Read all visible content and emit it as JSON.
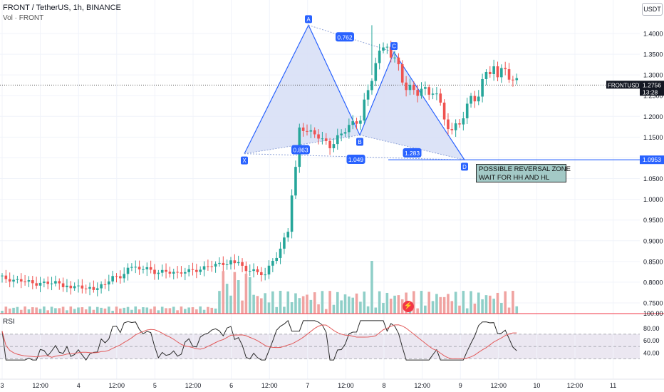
{
  "header": {
    "title": "FRONT / TetherUS, 1h, BINANCE",
    "volume_label": "Vol · FRONT",
    "currency": "USDT"
  },
  "indicator": {
    "label": "RSI"
  },
  "annotation": {
    "line1": "POSSIBLE REVERSAL ZONE",
    "line2": "WAIT FOR HH AND HL"
  },
  "colors": {
    "up": "#26a69a",
    "down": "#ef5350",
    "pattern": "#2962ff",
    "pattern_fill": "#d8e0f6",
    "rsi_line": "#2b2b2b",
    "rsi_ma": "#e25b5b",
    "label_bg": "#2962ff"
  },
  "chart_data": {
    "type": "candlestick",
    "price_axis": {
      "ticks": [
        "1.4000",
        "1.3500",
        "1.3000",
        "1.2500",
        "1.2000",
        "1.1500",
        "1.1000",
        "1.0500",
        "1.0000",
        "0.9500",
        "0.9000",
        "0.8500",
        "0.8000",
        "0.7500"
      ],
      "range": [
        0.735,
        1.455
      ]
    },
    "time_axis": {
      "labels": [
        "3",
        "12:00",
        "4",
        "12:00",
        "5",
        "12:00",
        "6",
        "12:00",
        "7",
        "12:00",
        "8",
        "12:00",
        "9",
        "12:00",
        "10",
        "12:00",
        "11"
      ]
    },
    "current_price": {
      "symbol": "FRONTUSDT",
      "price": "1.2756",
      "countdown": "13:28"
    },
    "level_line": {
      "price": "1.0953"
    },
    "harmonic_pattern": {
      "points": [
        {
          "label": "X",
          "price": 1.11
        },
        {
          "label": "A",
          "price": 1.42
        },
        {
          "label": "B",
          "price": 1.155
        },
        {
          "label": "C",
          "price": 1.355
        },
        {
          "label": "D",
          "price": 1.095
        }
      ],
      "ratios": [
        "0.762",
        "0.863",
        "1.049",
        "1.283"
      ]
    },
    "volume_axis": {
      "labels": [
        "100.00"
      ]
    },
    "rsi": {
      "ticks": [
        "80.00",
        "60.00",
        "40.00"
      ],
      "levels": [
        70,
        50,
        30
      ]
    }
  }
}
